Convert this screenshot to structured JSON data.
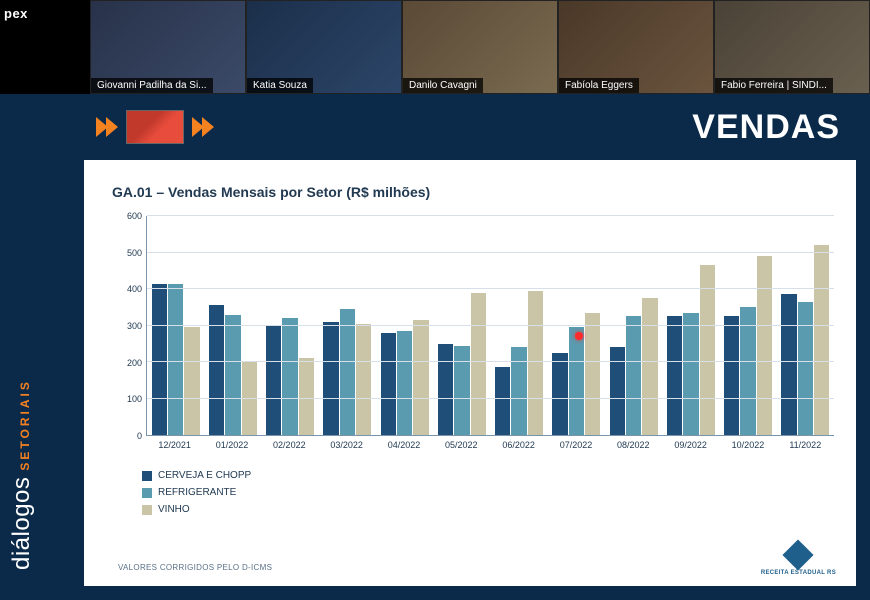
{
  "app_logo_text": "pex",
  "participants": [
    {
      "name": "Giovanni Padilha da Si...",
      "bg_from": "#28324a",
      "bg_to": "#3b4a68"
    },
    {
      "name": "Katia Souza",
      "bg_from": "#1b2f4a",
      "bg_to": "#2c4568"
    },
    {
      "name": "Danilo Cavagni",
      "bg_from": "#5a4a36",
      "bg_to": "#7a6a50"
    },
    {
      "name": "Fabíola Eggers",
      "bg_from": "#4a3828",
      "bg_to": "#6a543e"
    },
    {
      "name": "Fabio Ferreira | SINDI...",
      "bg_from": "#4a4236",
      "bg_to": "#6a6050"
    }
  ],
  "rail": {
    "word1": "diálogos",
    "word2": "SETORIAIS"
  },
  "slide": {
    "title": "VENDAS",
    "header_bg": "#0b2a4a",
    "body_bg": "#ffffff",
    "thumb_present": true
  },
  "chart": {
    "type": "bar",
    "title": "GA.01 – Vendas Mensais por Setor (R$ milhões)",
    "title_color": "#213a52",
    "title_fontsize": 14,
    "ylim": [
      0,
      600
    ],
    "ytick_step": 100,
    "y_ticks": [
      0,
      100,
      200,
      300,
      400,
      500,
      600
    ],
    "grid_color": "#d7e0e8",
    "axis_color": "#7a94ab",
    "label_fontsize": 9,
    "bar_width_pct": 30,
    "categories": [
      "12/2021",
      "01/2022",
      "02/2022",
      "03/2022",
      "04/2022",
      "05/2022",
      "06/2022",
      "07/2022",
      "08/2022",
      "09/2022",
      "10/2022",
      "11/2022"
    ],
    "series": [
      {
        "name": "CERVEJA E CHOPP",
        "color": "#1f4e79",
        "values": [
          415,
          355,
          300,
          310,
          280,
          250,
          185,
          225,
          240,
          325,
          325,
          385
        ]
      },
      {
        "name": "REFRIGERANTE",
        "color": "#5a9bb0",
        "values": [
          415,
          330,
          320,
          345,
          285,
          245,
          240,
          295,
          325,
          335,
          350,
          365
        ]
      },
      {
        "name": "VINHO",
        "color": "#cbc5a8",
        "values": [
          295,
          200,
          210,
          305,
          315,
          390,
          395,
          335,
          375,
          465,
          490,
          520
        ]
      }
    ]
  },
  "legend_items": [
    {
      "label": "CERVEJA E CHOPP",
      "color": "#1f4e79"
    },
    {
      "label": "REFRIGERANTE",
      "color": "#5a9bb0"
    },
    {
      "label": "VINHO",
      "color": "#cbc5a8"
    }
  ],
  "footnote": "VALORES CORRIGIDOS PELO D-ICMS",
  "footer_logo_text": "RECEITA ESTADUAL RS",
  "laser_pointer": {
    "category_index": 7,
    "between_bars": "1-2",
    "value": 270
  }
}
